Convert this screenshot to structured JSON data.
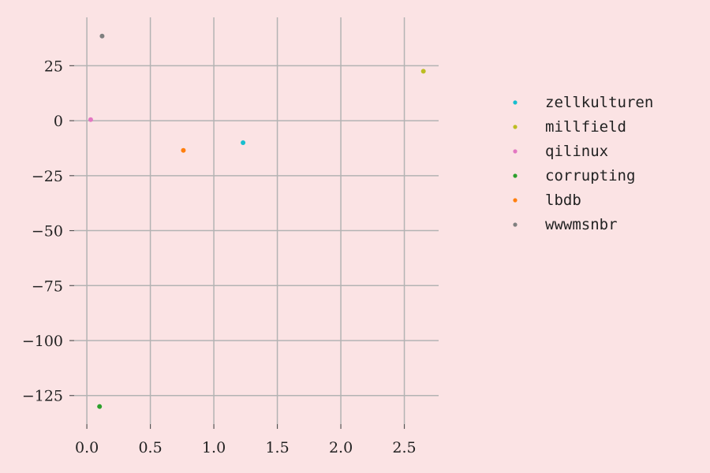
{
  "chart_data": {
    "type": "scatter",
    "title": "",
    "xlabel": "",
    "ylabel": "",
    "xlim": [
      -0.1,
      2.77
    ],
    "ylim": [
      -138,
      47
    ],
    "xticks": [
      0.0,
      0.5,
      1.0,
      1.5,
      2.0,
      2.5
    ],
    "xtick_labels": [
      "0.0",
      "0.5",
      "1.0",
      "1.5",
      "2.0",
      "2.5"
    ],
    "yticks": [
      25,
      0,
      -25,
      -50,
      -75,
      -100,
      -125
    ],
    "ytick_labels": [
      "25",
      "0",
      "−25",
      "−50",
      "−75",
      "−100",
      "−125"
    ],
    "grid": true,
    "legend_position": "right",
    "series": [
      {
        "name": "zellkulturen",
        "color": "#17becf",
        "points": [
          {
            "x": 1.23,
            "y": -10
          }
        ]
      },
      {
        "name": "millfield",
        "color": "#bcbd22",
        "points": [
          {
            "x": 2.65,
            "y": 22.5
          }
        ]
      },
      {
        "name": "qilinux",
        "color": "#e377c2",
        "points": [
          {
            "x": 0.03,
            "y": 0.5
          }
        ]
      },
      {
        "name": "corrupting",
        "color": "#2ca02c",
        "points": [
          {
            "x": 0.1,
            "y": -130
          }
        ]
      },
      {
        "name": "lbdb",
        "color": "#ff7f0e",
        "points": [
          {
            "x": 0.76,
            "y": -13.5
          }
        ]
      },
      {
        "name": "wwwmsnbr",
        "color": "#7f7f7f",
        "points": [
          {
            "x": 0.12,
            "y": 38.5
          }
        ]
      }
    ]
  }
}
